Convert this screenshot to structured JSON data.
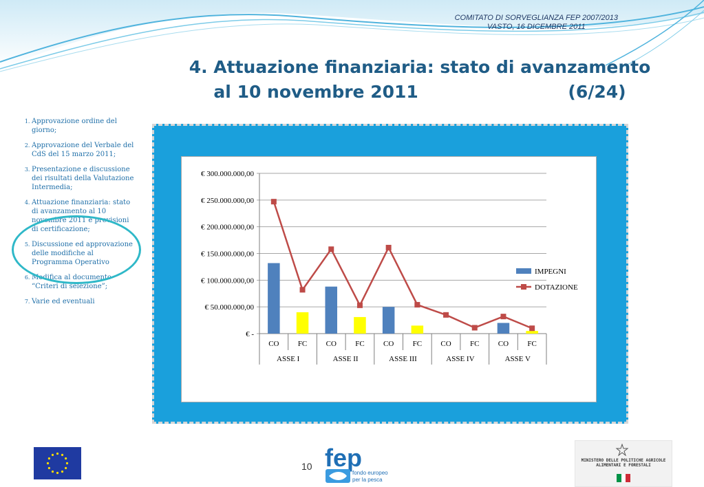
{
  "header": {
    "conference_line1": "COMITATO DI SORVEGLIANZA FEP 2007/2013",
    "conference_line2": "VASTO, 16 DICEMBRE 2011"
  },
  "slide": {
    "title_line1": "4. Attuazione finanziaria: stato di avanzamento",
    "title_line2": "al 10 novembre 2011                         (6/24)"
  },
  "agenda": {
    "items": [
      {
        "num": "1.",
        "text": "Approvazione ordine del giorno;"
      },
      {
        "num": "2.",
        "text": "Approvazione del Verbale del CdS del 15 marzo 2011;"
      },
      {
        "num": "3.",
        "text": "Presentazione e discussione dei risultati della Valutazione Intermedia;"
      },
      {
        "num": "4.",
        "text": "Attuazione finanziaria: stato di avanzamento al 10 novembre 2011 e previsioni di certificazione;"
      },
      {
        "num": "5.",
        "text": "Discussione ed approvazione delle modifiche al Programma Operativo"
      },
      {
        "num": "6.",
        "text": "Modifica al documento “Criteri di selezione”;"
      },
      {
        "num": "7.",
        "text": "Varie ed eventuali"
      }
    ]
  },
  "chart_data": {
    "type": "bar",
    "categories": [
      "CO",
      "FC",
      "CO",
      "FC",
      "CO",
      "FC",
      "CO",
      "FC",
      "CO",
      "FC"
    ],
    "groups": [
      "ASSE I",
      "ASSE II",
      "ASSE III",
      "ASSE IV",
      "ASSE V"
    ],
    "series": [
      {
        "name": "IMPEGNI",
        "kind": "bar",
        "values": [
          132000000,
          40000000,
          88000000,
          31000000,
          50000000,
          15000000,
          0,
          0,
          20000000,
          5000000
        ]
      },
      {
        "name": "DOTAZIONE",
        "kind": "line",
        "values": [
          247000000,
          82000000,
          158000000,
          53000000,
          161000000,
          54000000,
          35000000,
          11000000,
          32000000,
          10000000
        ]
      }
    ],
    "bar_colors": {
      "CO": "#4f81bd",
      "FC": "#ffff00"
    },
    "line_color": "#be4b48",
    "yticks": [
      "€ -",
      "€ 50.000.000,00",
      "€ 100.000.000,00",
      "€ 150.000.000,00",
      "€ 200.000.000,00",
      "€ 250.000.000,00",
      "€ 300.000.000,00"
    ],
    "ylim": [
      0,
      300000000
    ],
    "grid": true,
    "legend_position": "right"
  },
  "footer": {
    "page_number": "10",
    "fep_logo_text": "fep",
    "fep_subtitle_line1": "fondo europeo",
    "fep_subtitle_line2": "per la pesca",
    "ministry_line1": "MINISTERO DELLE POLITICHE AGRICOLE",
    "ministry_line2": "ALIMENTARI E FORESTALI"
  }
}
